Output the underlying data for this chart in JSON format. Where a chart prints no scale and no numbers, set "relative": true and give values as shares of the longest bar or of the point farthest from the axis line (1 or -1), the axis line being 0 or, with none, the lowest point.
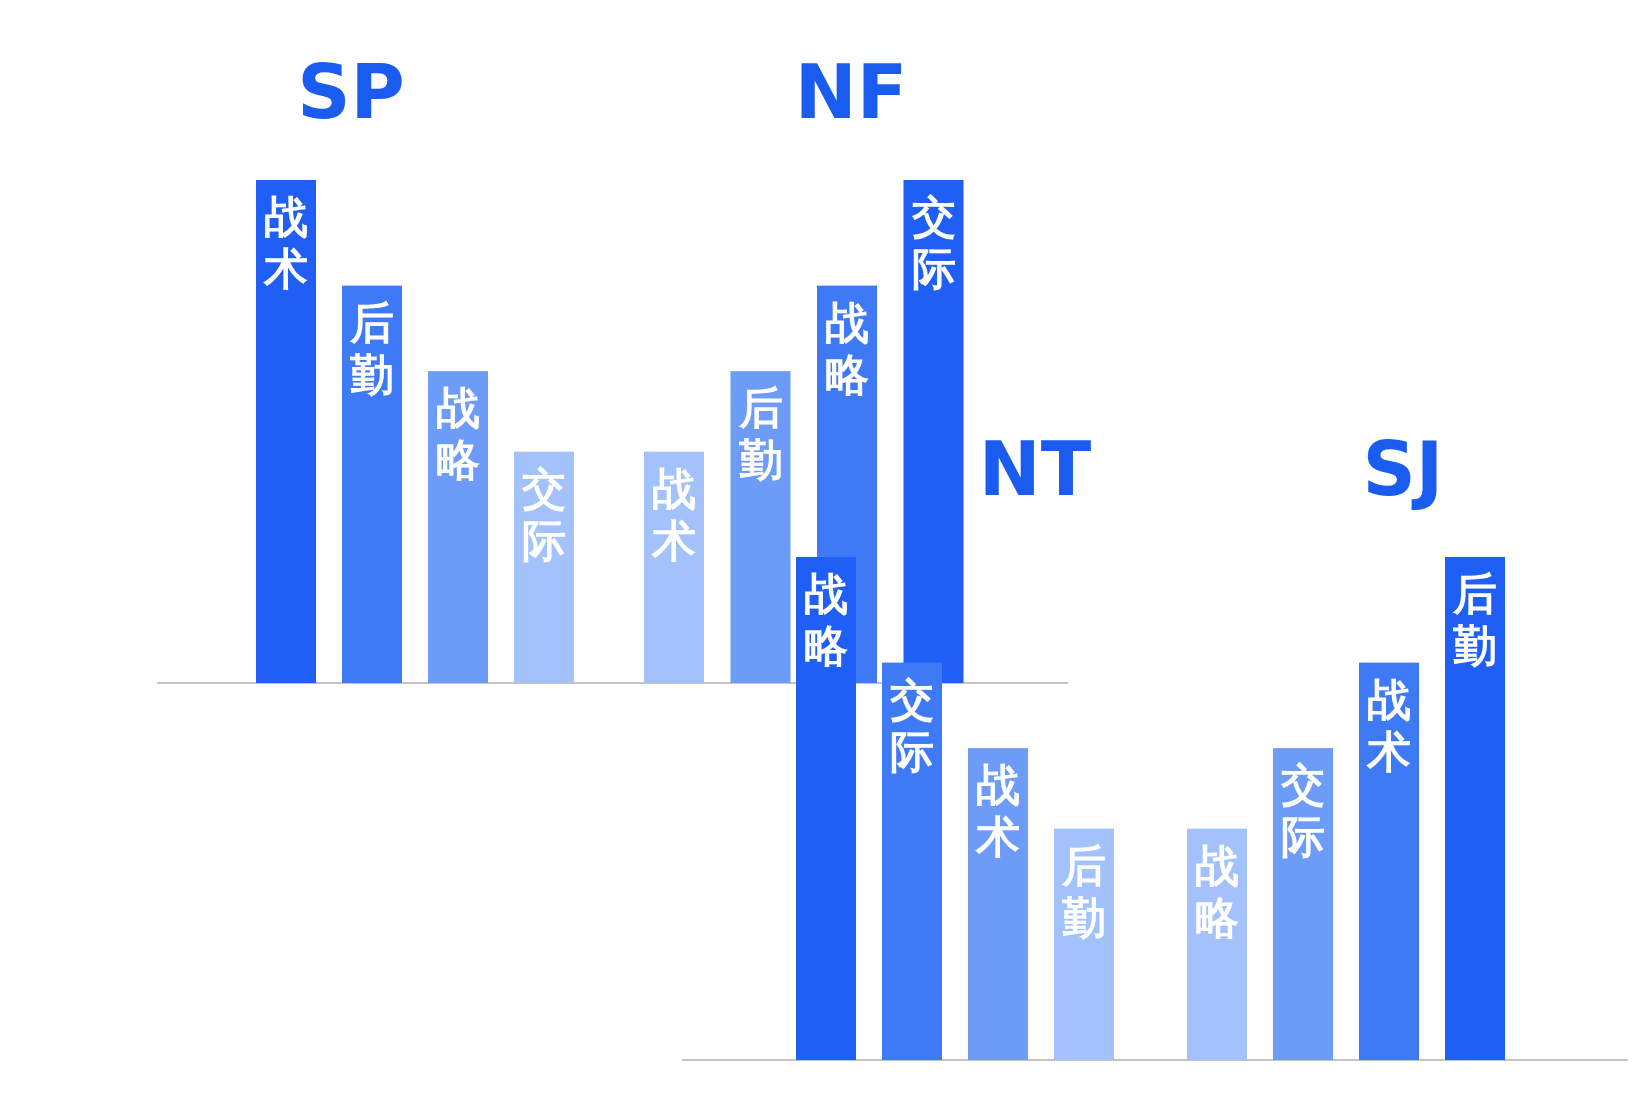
{
  "chart_data": [
    {
      "type": "bar",
      "title": "SP",
      "categories": [
        "战术",
        "后勤",
        "战略",
        "交际"
      ],
      "values": [
        1,
        0.79,
        0.62,
        0.46
      ],
      "relative": true,
      "colors": [
        "#1f5ff5",
        "#3f7af6",
        "#6d9bf8",
        "#a3c2fb"
      ]
    },
    {
      "type": "bar",
      "title": "NF",
      "categories": [
        "战术",
        "后勤",
        "战略",
        "交际"
      ],
      "values": [
        0.46,
        0.62,
        0.79,
        1
      ],
      "relative": true,
      "colors": [
        "#a3c2fb",
        "#6d9bf8",
        "#3f7af6",
        "#1f5ff5"
      ]
    },
    {
      "type": "bar",
      "title": "NT",
      "categories": [
        "战略",
        "交际",
        "战术",
        "后勤"
      ],
      "values": [
        1,
        0.79,
        0.62,
        0.46
      ],
      "relative": true,
      "colors": [
        "#1f5ff5",
        "#3f7af6",
        "#6d9bf8",
        "#a3c2fb"
      ]
    },
    {
      "type": "bar",
      "title": "SJ",
      "categories": [
        "战略",
        "交际",
        "战术",
        "后勤"
      ],
      "values": [
        0.46,
        0.62,
        0.79,
        1
      ],
      "relative": true,
      "colors": [
        "#a3c2fb",
        "#6d9bf8",
        "#3f7af6",
        "#1f5ff5"
      ]
    }
  ]
}
